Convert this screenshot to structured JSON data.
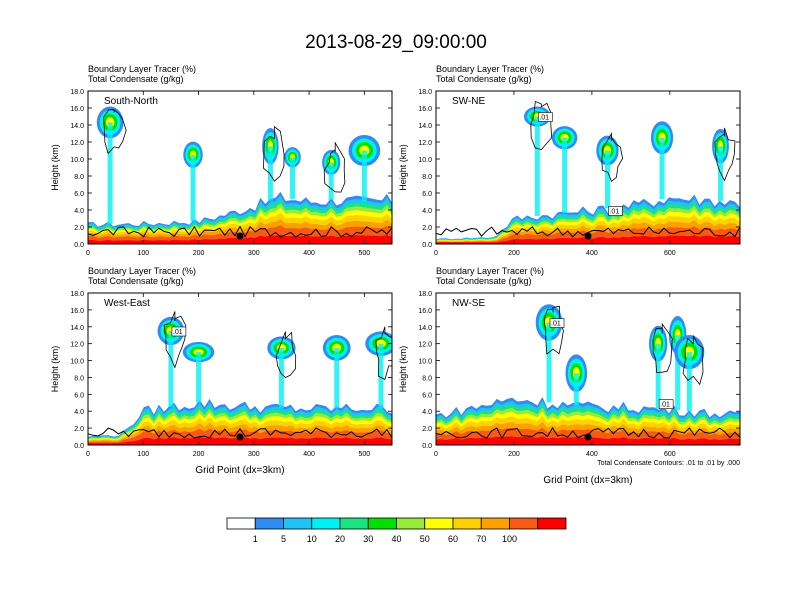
{
  "figure_title": "2013-08-29_09:00:00",
  "colors": {
    "bins": [
      "#ffffff",
      "#2f8cf2",
      "#23c2f4",
      "#00f1f2",
      "#19e481",
      "#00e000",
      "#97ea3a",
      "#ffff00",
      "#fdd000",
      "#fca000",
      "#f65a14",
      "#ff0000"
    ],
    "contour": "#000000",
    "terrain": "#000000",
    "marker": "#000000"
  },
  "colorbar": {
    "labels": [
      "1",
      "5",
      "10",
      "20",
      "30",
      "40",
      "50",
      "60",
      "70",
      "100"
    ]
  },
  "chart_data": [
    {
      "type": "heatmap",
      "panel_label": "South-North",
      "title_line1": "Boundary Layer Tracer   (%)",
      "title_line2": "Total Condensate   (g/kg)",
      "ylabel": "Height (km)",
      "xlabel": "",
      "ylim": [
        0,
        18
      ],
      "xlim": [
        0,
        550
      ],
      "yticks": [
        "0.0",
        "2.0",
        "4.0",
        "6.0",
        "8.0",
        "10.0",
        "12.0",
        "14.0",
        "16.0",
        "18.0"
      ],
      "xticks": [
        0,
        100,
        200,
        300,
        400,
        500
      ],
      "boundary_layer_top_km": [
        [
          0,
          2.3
        ],
        [
          100,
          2.4
        ],
        [
          200,
          2.7
        ],
        [
          250,
          3.5
        ],
        [
          300,
          4.5
        ],
        [
          350,
          5.5
        ],
        [
          400,
          5.0
        ],
        [
          450,
          5.2
        ],
        [
          500,
          5.0
        ],
        [
          550,
          5.2
        ]
      ],
      "convective_plumes": [
        [
          40,
          14.3
        ],
        [
          190,
          10.5
        ],
        [
          330,
          11.5
        ],
        [
          370,
          10.2
        ],
        [
          440,
          9.6
        ],
        [
          500,
          11.0
        ]
      ],
      "marker_x": 275,
      "contour_labels": []
    },
    {
      "type": "heatmap",
      "panel_label": "SW-NE",
      "title_line1": "Boundary Layer Tracer   (%)",
      "title_line2": "Total Condensate   (g/kg)",
      "ylabel": "Height (km)",
      "xlabel": "",
      "ylim": [
        0,
        18
      ],
      "xlim": [
        0,
        780
      ],
      "yticks": [
        "0.0",
        "2.0",
        "4.0",
        "6.0",
        "8.0",
        "10.0",
        "12.0",
        "14.0",
        "16.0",
        "18.0"
      ],
      "xticks": [
        0,
        200,
        400,
        600
      ],
      "boundary_layer_top_km": [
        [
          0,
          0.6
        ],
        [
          150,
          0.8
        ],
        [
          200,
          3.0
        ],
        [
          300,
          3.5
        ],
        [
          400,
          4.0
        ],
        [
          500,
          4.5
        ],
        [
          600,
          5.5
        ],
        [
          700,
          5.2
        ],
        [
          780,
          4.8
        ]
      ],
      "convective_plumes": [
        [
          260,
          15.0
        ],
        [
          330,
          12.5
        ],
        [
          440,
          11.0
        ],
        [
          580,
          12.5
        ],
        [
          730,
          11.5
        ]
      ],
      "marker_x": 390,
      "contour_labels": [
        ".01",
        ".01"
      ]
    },
    {
      "type": "heatmap",
      "panel_label": "West-East",
      "title_line1": "Boundary Layer Tracer   (%)",
      "title_line2": "Total Condensate   (g/kg)",
      "ylabel": "Height (km)",
      "xlabel": "Grid Point (dx=3km)",
      "ylim": [
        0,
        18
      ],
      "xlim": [
        0,
        550
      ],
      "yticks": [
        "0.0",
        "2.0",
        "4.0",
        "6.0",
        "8.0",
        "10.0",
        "12.0",
        "14.0",
        "16.0",
        "18.0"
      ],
      "xticks": [
        0,
        100,
        200,
        300,
        400,
        500
      ],
      "boundary_layer_top_km": [
        [
          0,
          1.0
        ],
        [
          60,
          1.2
        ],
        [
          100,
          4.0
        ],
        [
          200,
          5.0
        ],
        [
          300,
          4.5
        ],
        [
          400,
          4.3
        ],
        [
          500,
          4.4
        ],
        [
          550,
          4.3
        ]
      ],
      "convective_plumes": [
        [
          150,
          13.5
        ],
        [
          200,
          11.0
        ],
        [
          350,
          11.5
        ],
        [
          450,
          11.5
        ],
        [
          530,
          12.0
        ]
      ],
      "marker_x": 275,
      "contour_labels": [
        ".01"
      ]
    },
    {
      "type": "heatmap",
      "panel_label": "NW-SE",
      "title_line1": "Boundary Layer Tracer   (%)",
      "title_line2": "Total Condensate   (g/kg)",
      "ylabel": "Height (km)",
      "xlabel": "Grid Point (dx=3km)",
      "ylim": [
        0,
        18
      ],
      "xlim": [
        0,
        780
      ],
      "yticks": [
        "0.0",
        "2.0",
        "4.0",
        "6.0",
        "8.0",
        "10.0",
        "12.0",
        "14.0",
        "16.0",
        "18.0"
      ],
      "xticks": [
        0,
        200,
        400,
        600
      ],
      "boundary_layer_top_km": [
        [
          0,
          3.5
        ],
        [
          100,
          4.5
        ],
        [
          200,
          5.5
        ],
        [
          300,
          5.0
        ],
        [
          400,
          4.5
        ],
        [
          500,
          4.5
        ],
        [
          600,
          4.2
        ],
        [
          700,
          3.8
        ],
        [
          780,
          3.5
        ]
      ],
      "convective_plumes": [
        [
          290,
          14.5
        ],
        [
          360,
          8.5
        ],
        [
          570,
          12.0
        ],
        [
          620,
          13.0
        ],
        [
          650,
          11.0
        ]
      ],
      "marker_x": 390,
      "contour_labels": [
        ".01",
        ".01"
      ],
      "footnote": "Total Condensate Contours: .01 to .01 by .000"
    }
  ]
}
